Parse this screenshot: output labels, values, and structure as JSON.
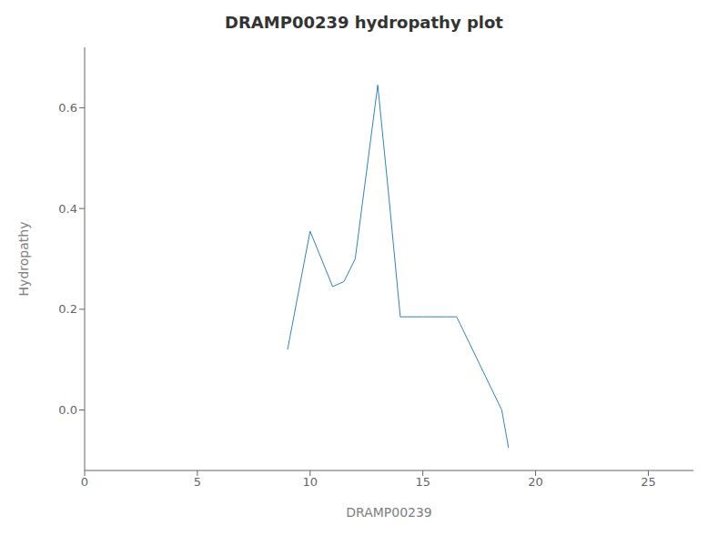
{
  "chart_data": {
    "type": "line",
    "title": "DRAMP00239 hydropathy plot",
    "xlabel": "DRAMP00239",
    "ylabel": "Hydropathy",
    "x": [
      9.0,
      10.0,
      11.0,
      11.5,
      12.0,
      13.0,
      13.5,
      14.0,
      15.0,
      16.0,
      16.5,
      18.5,
      18.8
    ],
    "values": [
      0.12,
      0.355,
      0.245,
      0.255,
      0.3,
      0.645,
      0.42,
      0.185,
      0.185,
      0.185,
      0.185,
      0.0,
      -0.075
    ],
    "xlim": [
      0,
      27
    ],
    "ylim": [
      -0.12,
      0.72
    ],
    "xticks": [
      0,
      5,
      10,
      15,
      20,
      25
    ],
    "yticks": [
      {
        "value": 0.0,
        "label": "0.0"
      },
      0.2,
      0.4,
      0.6
    ],
    "grid": false
  }
}
